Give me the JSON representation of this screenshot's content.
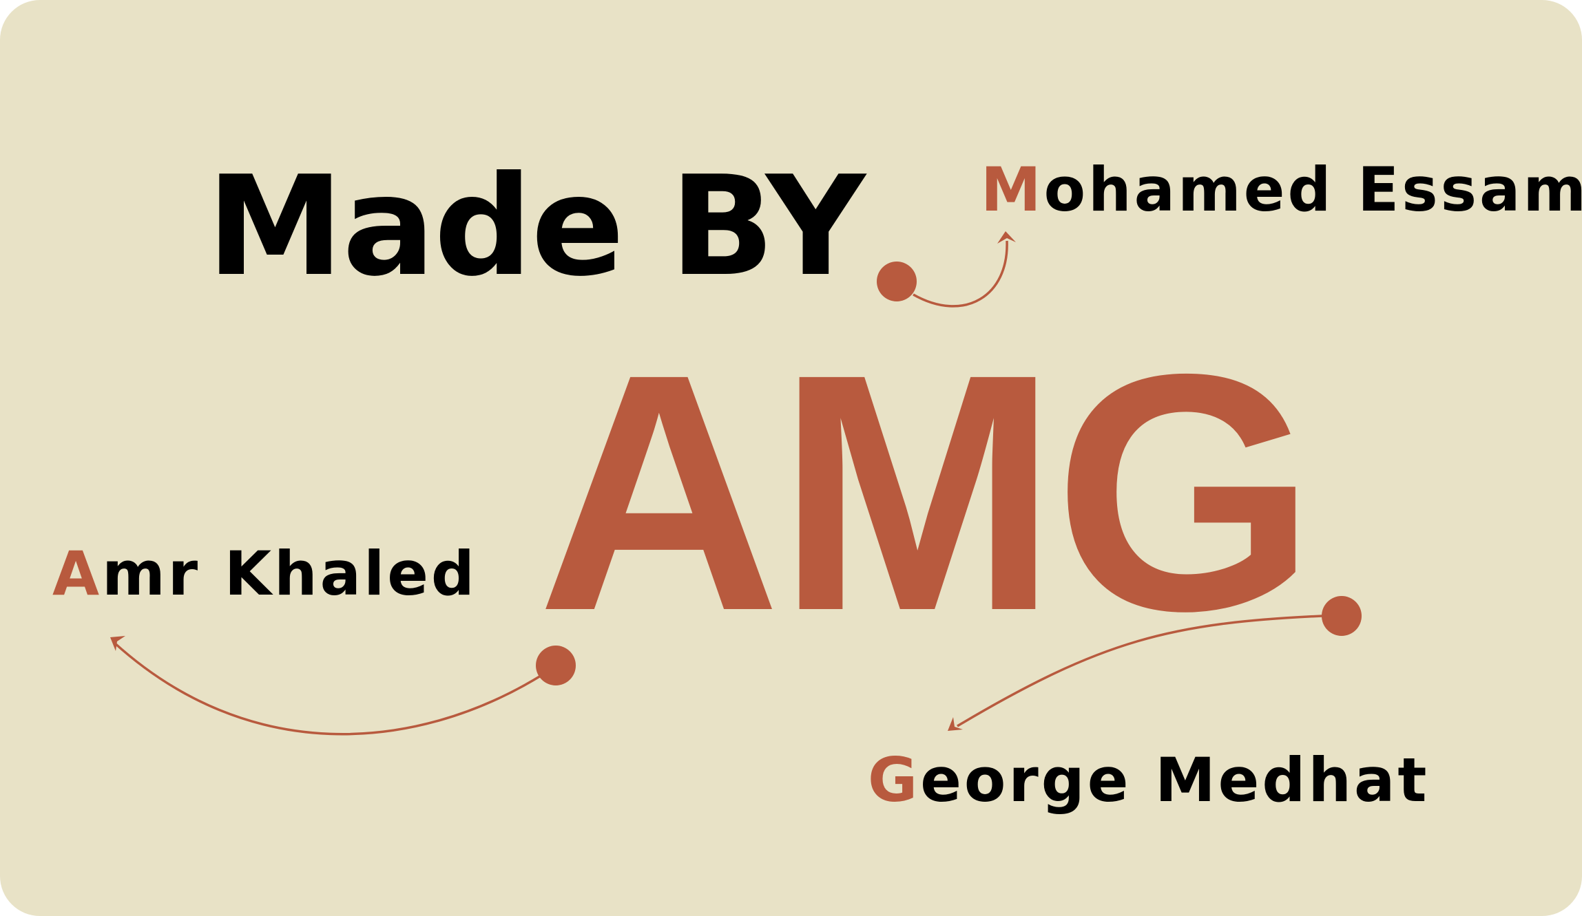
{
  "headline": "Made BY",
  "logo": "AMG",
  "names": [
    {
      "initial": "M",
      "rest": "ohamed Essam"
    },
    {
      "initial": "A",
      "rest": "mr Khaled"
    },
    {
      "initial": "G",
      "rest": "eorge Medhat"
    }
  ],
  "colors": {
    "background": "#e8e2c6",
    "accent": "#b85a3e",
    "text": "#000000"
  }
}
